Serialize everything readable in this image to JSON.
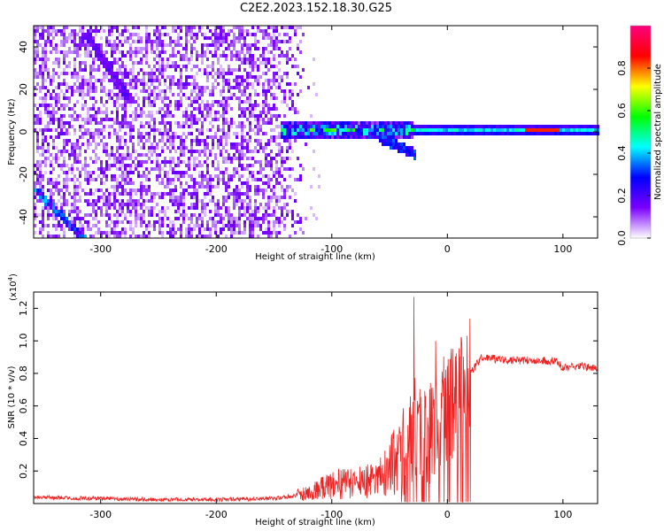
{
  "title": "C2E2.2023.152.18.30.G25",
  "chart_data": [
    {
      "type": "heatmap",
      "xlabel": "Height of straight line (km)",
      "ylabel": "Frequency (Hz)",
      "xlim": [
        -358,
        130
      ],
      "ylim": [
        -50,
        50
      ],
      "x_ticks": [
        -300,
        -200,
        -100,
        0,
        100
      ],
      "x_tick_labels": [
        "-300",
        "-200",
        "-100",
        "0",
        "100"
      ],
      "y_ticks": [
        -40,
        -20,
        0,
        20,
        40
      ],
      "y_tick_labels": [
        "-40",
        "-20",
        "0",
        "20",
        "40"
      ],
      "colorbar": {
        "label": "Normalized spectral amplitude",
        "range": [
          0,
          1
        ],
        "ticks": [
          0.0,
          0.2,
          0.4,
          0.6,
          0.8
        ],
        "tick_labels": [
          "0.0",
          "0.2",
          "0.4",
          "0.6",
          "0.8"
        ],
        "colors": [
          "#ffffff",
          "#7a00ff",
          "#0000ff",
          "#00ffff",
          "#00ff00",
          "#ffff00",
          "#ff0000",
          "#ff0080"
        ]
      },
      "features": [
        {
          "description": "scattered purple noise",
          "x_range": [
            -358,
            -120
          ],
          "y_range": [
            -50,
            50
          ],
          "amplitude": 0.1
        },
        {
          "description": "diagonal line upper left",
          "from": [
            -315,
            48
          ],
          "to": [
            -275,
            15
          ]
        },
        {
          "description": "diagonal line lower left",
          "from": [
            -358,
            -26
          ],
          "to": [
            -315,
            -50
          ]
        },
        {
          "description": "main carrier line",
          "x_range": [
            -145,
            130
          ],
          "frequency": 1.5,
          "amplitude": 0.5
        },
        {
          "description": "high-amplitude red segment",
          "x_range": [
            65,
            95
          ],
          "frequency": 1.5,
          "amplitude": 0.9
        }
      ]
    },
    {
      "type": "line",
      "xlabel": "Height of straight line (km)",
      "ylabel": "SNR (10 * v/v)",
      "y_exponent": "(x10",
      "y_exponent_power": "4",
      "y_exponent_close": ")",
      "xlim": [
        -358,
        130
      ],
      "ylim": [
        0,
        1.3
      ],
      "x_ticks": [
        -300,
        -200,
        -100,
        0,
        100
      ],
      "x_tick_labels": [
        "-300",
        "-200",
        "-100",
        "0",
        "100"
      ],
      "y_ticks": [
        0.2,
        0.4,
        0.6,
        0.8,
        1.0,
        1.2
      ],
      "y_tick_labels": [
        "0.2",
        "0.4",
        "0.6",
        "0.8",
        "1.0",
        "1.2"
      ],
      "color": "#ee2222",
      "envelope": [
        {
          "x": -358,
          "y": 0.04
        },
        {
          "x": -300,
          "y": 0.03
        },
        {
          "x": -250,
          "y": 0.025
        },
        {
          "x": -200,
          "y": 0.025
        },
        {
          "x": -150,
          "y": 0.03
        },
        {
          "x": -120,
          "y": 0.06
        },
        {
          "x": -100,
          "y": 0.12
        },
        {
          "x": -80,
          "y": 0.12
        },
        {
          "x": -60,
          "y": 0.15
        },
        {
          "x": -40,
          "y": 0.3
        },
        {
          "x": -30,
          "y": 0.45
        },
        {
          "x": -20,
          "y": 0.35
        },
        {
          "x": -10,
          "y": 0.55
        },
        {
          "x": 0,
          "y": 0.6
        },
        {
          "x": 10,
          "y": 0.62
        },
        {
          "x": 20,
          "y": 0.8
        },
        {
          "x": 30,
          "y": 0.9
        },
        {
          "x": 50,
          "y": 0.88
        },
        {
          "x": 80,
          "y": 0.88
        },
        {
          "x": 95,
          "y": 0.87
        },
        {
          "x": 100,
          "y": 0.83
        },
        {
          "x": 115,
          "y": 0.85
        },
        {
          "x": 130,
          "y": 0.83
        }
      ],
      "spikes": [
        {
          "x": -29,
          "y": 1.27
        },
        {
          "x": -27,
          "y": 1.06
        },
        {
          "x": -35,
          "y": 0.95
        },
        {
          "x": -10,
          "y": 1.0
        },
        {
          "x": 12,
          "y": 1.02
        },
        {
          "x": 5,
          "y": 0.95
        }
      ]
    }
  ]
}
